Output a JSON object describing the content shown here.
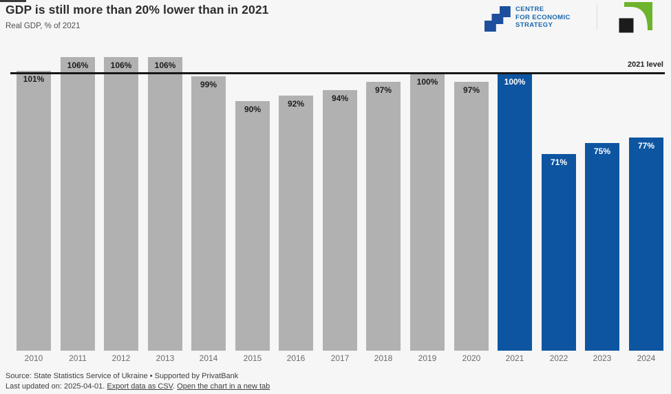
{
  "chart_data": {
    "type": "bar",
    "title": "GDP is still more than 20% lower than in 2021",
    "subtitle": "Real GDP, % of 2021",
    "categories": [
      "2010",
      "2011",
      "2012",
      "2013",
      "2014",
      "2015",
      "2016",
      "2017",
      "2018",
      "2019",
      "2020",
      "2021",
      "2022",
      "2023",
      "2024"
    ],
    "values": [
      101,
      106,
      106,
      106,
      99,
      90,
      92,
      94,
      97,
      100,
      97,
      100,
      71,
      75,
      77
    ],
    "unit": "%",
    "value_label_position": "inside-top",
    "baseline": {
      "value": 100,
      "label": "2021 level"
    },
    "highlight_years": [
      "2021",
      "2022",
      "2023",
      "2024"
    ],
    "colors": {
      "bar_default": "#b1b1b1",
      "bar_highlight": "#0d55a1",
      "baseline_line": "#171717",
      "background": "#f6f6f6"
    },
    "ylim": [
      0,
      106
    ],
    "grid": false,
    "legend": false,
    "xlabel": "",
    "ylabel": ""
  },
  "logos": {
    "ces": {
      "lines": [
        "CENTRE",
        "FOR ECONOMIC",
        "STRATEGY"
      ],
      "icon": "stairs-icon",
      "color": "#1767ae"
    },
    "privatbank": {
      "icon": "privatbank-arrow-icon",
      "green": "#6db32b",
      "black": "#1c1c1c"
    }
  },
  "footer": {
    "source": "Source: State Statistics Service of Ukraine • Supported by PrivatBank",
    "updated_prefix": "Last updated on: 2025-04-01.",
    "csv_link": "Export data as CSV",
    "separator": ".",
    "newtab_link": "Open the chart in a new tab"
  }
}
